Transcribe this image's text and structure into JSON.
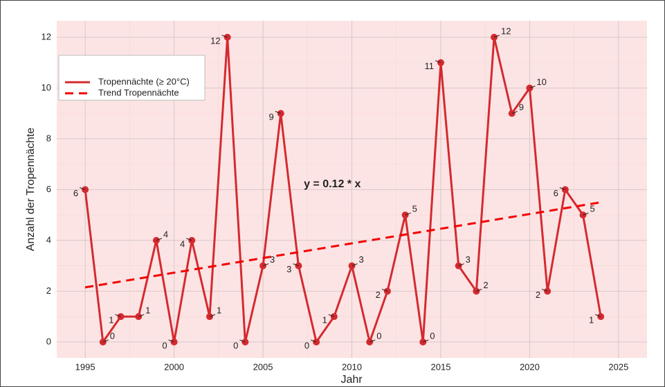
{
  "chart_data": {
    "type": "line",
    "x_label": "Jahr",
    "y_label": "Anzahl der Tropennächte",
    "annotation": "y = 0.12 * x",
    "x": [
      1995,
      1996,
      1997,
      1998,
      1999,
      2000,
      2001,
      2002,
      2003,
      2004,
      2005,
      2006,
      2007,
      2008,
      2009,
      2010,
      2011,
      2012,
      2013,
      2014,
      2015,
      2016,
      2017,
      2018,
      2019,
      2020,
      2021,
      2022,
      2023,
      2024
    ],
    "series": [
      {
        "name": "Tropennächte (≥ 20°C)",
        "color": "#d42a2f",
        "values": [
          6,
          0,
          1,
          1,
          4,
          0,
          4,
          1,
          12,
          0,
          3,
          9,
          3,
          0,
          1,
          3,
          0,
          2,
          5,
          0,
          11,
          3,
          2,
          12,
          9,
          10,
          2,
          6,
          5,
          1
        ]
      },
      {
        "name": "Trend Tropennächte",
        "color": "#f20000",
        "dashed": true,
        "x": [
          1995,
          2024
        ],
        "values": [
          2.15,
          5.5
        ]
      }
    ],
    "xlim": [
      1993.4,
      2026.6
    ],
    "xticks": [
      1995,
      2000,
      2005,
      2010,
      2015,
      2020,
      2025
    ],
    "ylim": [
      -0.63,
      12.65
    ],
    "yticks": [
      0,
      2,
      4,
      6,
      8,
      10,
      12
    ],
    "grid": true,
    "background": "#fde4e4",
    "legend": "top-left"
  }
}
